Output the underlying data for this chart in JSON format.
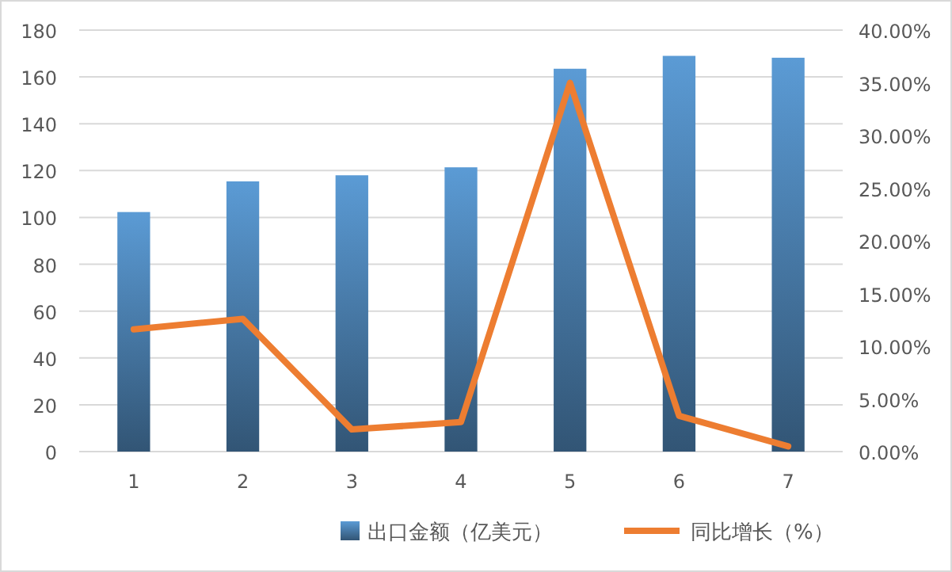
{
  "chart_data": {
    "type": "bar",
    "categories": [
      "1",
      "2",
      "3",
      "4",
      "5",
      "6",
      "7"
    ],
    "series": [
      {
        "name": "出口金额（亿美元）",
        "color": "#5b9bd5",
        "values": [
          102.3,
          115.4,
          118,
          121.4,
          163.5,
          169,
          168.2
        ]
      },
      {
        "name": "同比增长（%）",
        "type": "line",
        "axis": "y2",
        "color": "#ed7d31",
        "values": [
          11.6,
          12.6,
          2.1,
          2.8,
          35.0,
          3.4,
          0.5
        ]
      }
    ],
    "ylim": [
      0,
      180
    ],
    "yticks": [
      0,
      20,
      40,
      60,
      80,
      100,
      120,
      140,
      160,
      180
    ],
    "y2lim": [
      0,
      40
    ],
    "y2ticks": [
      {
        "value": 0,
        "label": "0.00%"
      },
      {
        "value": 5,
        "label": "5.00%"
      },
      {
        "value": 10,
        "label": "10.00%"
      },
      {
        "value": 15,
        "label": "15.00%"
      },
      {
        "value": 20,
        "label": "20.00%"
      },
      {
        "value": 25,
        "label": "25.00%"
      },
      {
        "value": 30,
        "label": "30.00%"
      },
      {
        "value": 35,
        "label": "35.00%"
      },
      {
        "value": 40,
        "label": "40.00%"
      }
    ],
    "grid": "y",
    "legend": "bottom",
    "marker": "none",
    "line_style": "solid"
  }
}
